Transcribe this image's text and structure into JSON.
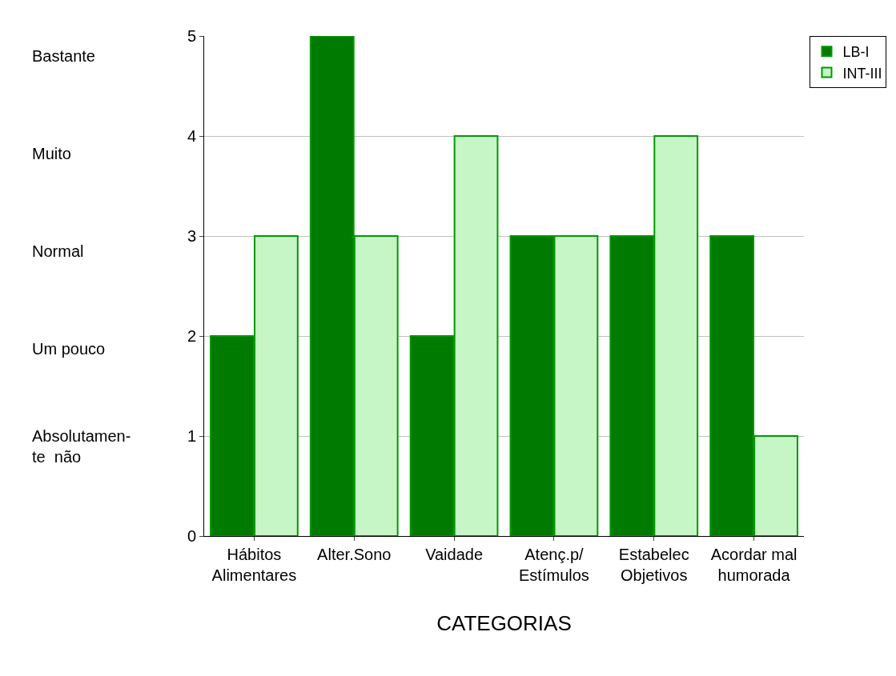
{
  "chart_data": {
    "type": "bar",
    "xlabel": "CATEGORIAS",
    "categories": [
      "Hábitos\nAlimentares",
      "Alter.Sono",
      "Vaidade",
      "Atenç.p/\nEstímulos",
      "Estabelec\nObjetivos",
      "Acordar mal\nhumorada"
    ],
    "series": [
      {
        "name": "LB-I",
        "color": "#007a00",
        "values": [
          2,
          5,
          2,
          3,
          3,
          3
        ]
      },
      {
        "name": "INT-III",
        "color": "#c6f5c6",
        "values": [
          3,
          3,
          4,
          3,
          4,
          1
        ]
      }
    ],
    "ylim": [
      0,
      5
    ],
    "yticks": [
      0,
      1,
      2,
      3,
      4,
      5
    ],
    "grid": "y",
    "legend": "top right",
    "annotations": [
      "Bastante",
      "Muito",
      "Normal",
      "Um pouco",
      "Absolutamen-\nte  não"
    ]
  }
}
